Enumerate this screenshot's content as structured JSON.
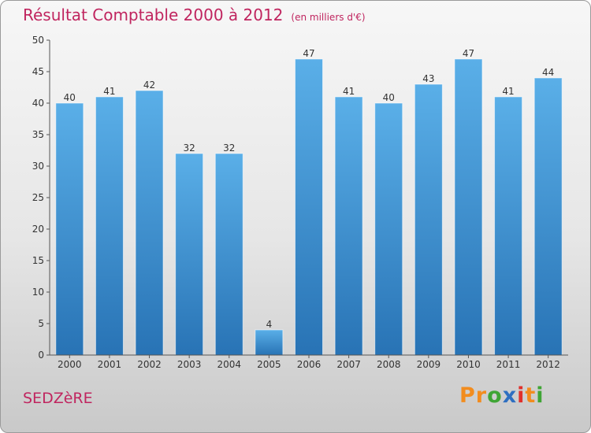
{
  "header": {
    "title": "Résultat Comptable 2000 à 2012",
    "unit": "(en milliers d'€)"
  },
  "footer": {
    "commune": "SEDZèRE",
    "brand": "Proxiti"
  },
  "colors": {
    "title": "#c0255f",
    "bar_top": "#5aafe8",
    "bar_bottom": "#2873b5",
    "brand_letters": [
      "#f28c1e",
      "#f28c1e",
      "#3fa535",
      "#2e6fc1",
      "#e0302b",
      "#f28c1e",
      "#3fa535"
    ]
  },
  "chart_data": {
    "type": "bar",
    "title": "Résultat Comptable 2000 à 2012",
    "subtitle": "(en milliers d'€)",
    "xlabel": "",
    "ylabel": "",
    "categories": [
      "2000",
      "2001",
      "2002",
      "2003",
      "2004",
      "2005",
      "2006",
      "2007",
      "2008",
      "2009",
      "2010",
      "2011",
      "2012"
    ],
    "values": [
      40,
      41,
      42,
      32,
      32,
      4,
      47,
      41,
      40,
      43,
      47,
      41,
      44
    ],
    "ylim": [
      0,
      50
    ],
    "yticks": [
      0,
      5,
      10,
      15,
      20,
      25,
      30,
      35,
      40,
      45,
      50
    ],
    "grid": false,
    "data_labels": true
  }
}
